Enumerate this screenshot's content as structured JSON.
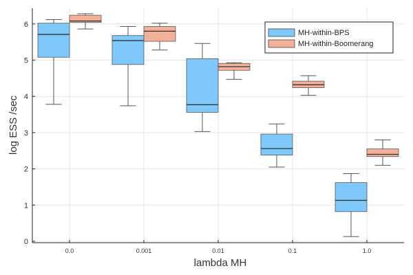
{
  "chart_data": {
    "type": "box",
    "categories": [
      "0.0",
      "0.001",
      "0.01",
      "0.1",
      "1.0"
    ],
    "xlabel": "lambda MH",
    "ylabel": "log ESS /sec",
    "ylim": [
      0,
      6.45
    ],
    "yticks": [
      0,
      1,
      2,
      3,
      4,
      5,
      6
    ],
    "grid": true,
    "legend_position": "top-right",
    "series": [
      {
        "name": "MH-within-BPS",
        "color": "#7ec8fb",
        "boxes": [
          {
            "min": 3.78,
            "q1": 5.08,
            "median": 5.71,
            "q3": 6.02,
            "max": 6.12
          },
          {
            "min": 3.74,
            "q1": 4.88,
            "median": 5.54,
            "q3": 5.68,
            "max": 5.93
          },
          {
            "min": 3.03,
            "q1": 3.56,
            "median": 3.77,
            "q3": 5.04,
            "max": 5.46
          },
          {
            "min": 2.05,
            "q1": 2.38,
            "median": 2.56,
            "q3": 2.96,
            "max": 3.24
          },
          {
            "min": 0.13,
            "q1": 0.82,
            "median": 1.13,
            "q3": 1.62,
            "max": 1.87
          }
        ]
      },
      {
        "name": "MH-within-Boomerang",
        "color": "#f4b19a",
        "boxes": [
          {
            "min": 5.86,
            "q1": 6.04,
            "median": 6.08,
            "q3": 6.24,
            "max": 6.28
          },
          {
            "min": 5.28,
            "q1": 5.52,
            "median": 5.8,
            "q3": 5.93,
            "max": 6.02
          },
          {
            "min": 4.47,
            "q1": 4.72,
            "median": 4.82,
            "q3": 4.91,
            "max": 4.93
          },
          {
            "min": 4.03,
            "q1": 4.24,
            "median": 4.32,
            "q3": 4.42,
            "max": 4.57
          },
          {
            "min": 2.1,
            "q1": 2.34,
            "median": 2.4,
            "q3": 2.55,
            "max": 2.8
          }
        ]
      }
    ]
  }
}
